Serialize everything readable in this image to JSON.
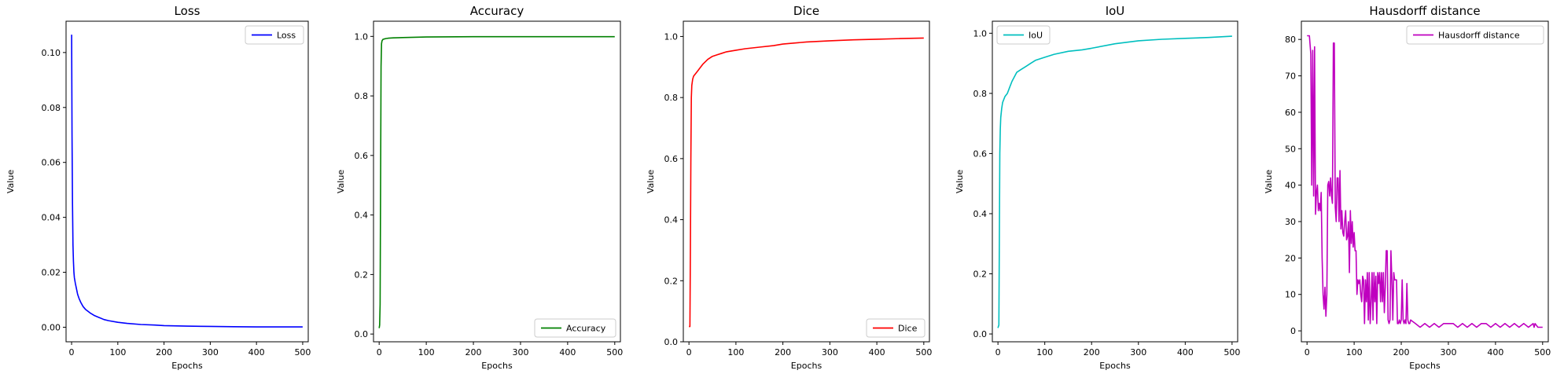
{
  "chart_data": [
    {
      "type": "line",
      "title": "Loss",
      "xlabel": "Epochs",
      "ylabel": "Value",
      "xlim": [
        -12,
        512
      ],
      "ylim": [
        -0.0053,
        0.1114
      ],
      "xticks": [
        0,
        100,
        200,
        300,
        400,
        500
      ],
      "xtick_labels": [
        "0",
        "100",
        "200",
        "300",
        "400",
        "500"
      ],
      "yticks": [
        0.0,
        0.02,
        0.04,
        0.06,
        0.08,
        0.1
      ],
      "ytick_labels": [
        "0.00",
        "0.02",
        "0.04",
        "0.06",
        "0.08",
        "0.10"
      ],
      "grid": false,
      "legend": "upper right",
      "series": [
        {
          "name": "Loss",
          "color": "#0000ff",
          "x": [
            0,
            1,
            2,
            3,
            4,
            5,
            6,
            8,
            10,
            13,
            16,
            20,
            25,
            30,
            40,
            50,
            60,
            70,
            80,
            100,
            120,
            150,
            180,
            200,
            250,
            300,
            350,
            400,
            450,
            500
          ],
          "y": [
            0.1065,
            0.07,
            0.045,
            0.03,
            0.024,
            0.02,
            0.018,
            0.016,
            0.0145,
            0.012,
            0.0105,
            0.009,
            0.0075,
            0.0065,
            0.0052,
            0.0042,
            0.0035,
            0.0028,
            0.0024,
            0.0018,
            0.0014,
            0.001,
            0.0008,
            0.0006,
            0.0004,
            0.0003,
            0.0002,
            0.0001,
            0.0001,
            0.0001
          ]
        }
      ]
    },
    {
      "type": "line",
      "title": "Accuracy",
      "xlabel": "Epochs",
      "ylabel": "Value",
      "xlim": [
        -12,
        512
      ],
      "ylim": [
        -0.026,
        1.051
      ],
      "xticks": [
        0,
        100,
        200,
        300,
        400,
        500
      ],
      "xtick_labels": [
        "0",
        "100",
        "200",
        "300",
        "400",
        "500"
      ],
      "yticks": [
        0.0,
        0.2,
        0.4,
        0.6,
        0.8,
        1.0
      ],
      "ytick_labels": [
        "0.0",
        "0.2",
        "0.4",
        "0.6",
        "0.8",
        "1.0"
      ],
      "grid": false,
      "legend": "lower right",
      "series": [
        {
          "name": "Accuracy",
          "color": "#008000",
          "x": [
            0,
            1,
            2,
            3,
            4,
            5,
            6,
            8,
            10,
            15,
            20,
            30,
            50,
            100,
            200,
            300,
            400,
            500
          ],
          "y": [
            0.02,
            0.03,
            0.1,
            0.5,
            0.9,
            0.975,
            0.985,
            0.99,
            0.991,
            0.993,
            0.994,
            0.995,
            0.996,
            0.998,
            0.999,
            0.999,
            0.999,
            0.999
          ]
        }
      ]
    },
    {
      "type": "line",
      "title": "Dice",
      "xlabel": "Epochs",
      "ylabel": "Value",
      "xlim": [
        -12,
        512
      ],
      "ylim": [
        0.0,
        1.05
      ],
      "xticks": [
        0,
        100,
        200,
        300,
        400,
        500
      ],
      "xtick_labels": [
        "0",
        "100",
        "200",
        "300",
        "400",
        "500"
      ],
      "yticks": [
        0.0,
        0.2,
        0.4,
        0.6,
        0.8,
        1.0
      ],
      "ytick_labels": [
        "0.0",
        "0.2",
        "0.4",
        "0.6",
        "0.8",
        "1.0"
      ],
      "grid": false,
      "legend": "lower right",
      "series": [
        {
          "name": "Dice",
          "color": "#ff0000",
          "x": [
            0,
            2,
            3,
            4,
            5,
            6,
            8,
            10,
            15,
            20,
            25,
            30,
            40,
            50,
            60,
            70,
            80,
            100,
            120,
            150,
            180,
            200,
            250,
            300,
            350,
            400,
            450,
            500
          ],
          "y": [
            0.05,
            0.05,
            0.3,
            0.6,
            0.8,
            0.84,
            0.86,
            0.87,
            0.88,
            0.89,
            0.9,
            0.91,
            0.925,
            0.935,
            0.94,
            0.945,
            0.95,
            0.955,
            0.96,
            0.965,
            0.97,
            0.975,
            0.982,
            0.986,
            0.989,
            0.991,
            0.993,
            0.995
          ]
        }
      ]
    },
    {
      "type": "line",
      "title": "IoU",
      "xlabel": "Epochs",
      "ylabel": "Value",
      "xlim": [
        -12,
        512
      ],
      "ylim": [
        -0.026,
        1.04
      ],
      "xticks": [
        0,
        100,
        200,
        300,
        400,
        500
      ],
      "xtick_labels": [
        "0",
        "100",
        "200",
        "300",
        "400",
        "500"
      ],
      "yticks": [
        0.0,
        0.2,
        0.4,
        0.6,
        0.8,
        1.0
      ],
      "ytick_labels": [
        "0.0",
        "0.2",
        "0.4",
        "0.6",
        "0.8",
        "1.0"
      ],
      "grid": false,
      "legend": "upper left",
      "series": [
        {
          "name": "IoU",
          "color": "#00bfbf",
          "x": [
            0,
            2,
            3,
            4,
            5,
            6,
            8,
            10,
            15,
            20,
            25,
            30,
            40,
            50,
            60,
            70,
            80,
            100,
            120,
            150,
            180,
            200,
            250,
            300,
            350,
            400,
            450,
            500
          ],
          "y": [
            0.02,
            0.03,
            0.3,
            0.6,
            0.68,
            0.72,
            0.75,
            0.77,
            0.79,
            0.8,
            0.82,
            0.84,
            0.87,
            0.88,
            0.89,
            0.9,
            0.91,
            0.92,
            0.93,
            0.94,
            0.945,
            0.95,
            0.965,
            0.975,
            0.98,
            0.983,
            0.986,
            0.99
          ]
        }
      ]
    },
    {
      "type": "line",
      "title": "Hausdorff distance",
      "xlabel": "Epochs",
      "ylabel": "Value",
      "xlim": [
        -12,
        512
      ],
      "ylim": [
        -3,
        85
      ],
      "xticks": [
        0,
        100,
        200,
        300,
        400,
        500
      ],
      "xtick_labels": [
        "0",
        "100",
        "200",
        "300",
        "400",
        "500"
      ],
      "yticks": [
        0,
        10,
        20,
        30,
        40,
        50,
        60,
        70,
        80
      ],
      "ytick_labels": [
        "0",
        "10",
        "20",
        "30",
        "40",
        "50",
        "60",
        "70",
        "80"
      ],
      "grid": false,
      "legend": "upper right",
      "series": [
        {
          "name": "Hausdorff distance",
          "color": "#bf00bf",
          "x": [
            0,
            5,
            8,
            10,
            12,
            14,
            16,
            18,
            20,
            22,
            24,
            26,
            28,
            30,
            32,
            34,
            36,
            38,
            40,
            42,
            44,
            46,
            48,
            50,
            52,
            54,
            56,
            58,
            60,
            62,
            64,
            66,
            68,
            70,
            72,
            74,
            76,
            78,
            80,
            82,
            84,
            86,
            88,
            90,
            92,
            94,
            96,
            98,
            100,
            102,
            104,
            106,
            108,
            110,
            112,
            114,
            116,
            118,
            120,
            122,
            124,
            126,
            128,
            130,
            132,
            134,
            136,
            138,
            140,
            142,
            144,
            146,
            148,
            150,
            152,
            154,
            156,
            158,
            160,
            162,
            164,
            166,
            168,
            170,
            172,
            174,
            176,
            178,
            180,
            182,
            184,
            186,
            188,
            190,
            192,
            194,
            196,
            198,
            200,
            202,
            204,
            206,
            208,
            210,
            212,
            214,
            216,
            218,
            220,
            230,
            240,
            250,
            260,
            270,
            280,
            290,
            300,
            310,
            320,
            330,
            340,
            350,
            360,
            370,
            380,
            390,
            400,
            410,
            420,
            430,
            440,
            450,
            460,
            470,
            480,
            482,
            484,
            490,
            500
          ],
          "y": [
            81,
            81,
            76,
            40,
            77,
            37,
            78,
            32,
            38,
            40,
            33,
            35,
            33,
            38,
            20,
            10,
            6,
            12,
            4,
            10,
            40,
            41,
            37,
            42,
            37,
            35,
            79,
            79,
            34,
            30,
            42,
            42,
            30,
            44,
            28,
            33,
            27,
            26,
            30,
            33,
            25,
            26,
            30,
            16,
            33,
            24,
            30,
            23,
            27,
            22,
            22,
            10,
            14,
            13,
            14,
            10,
            8,
            15,
            14,
            2,
            14,
            8,
            16,
            3,
            16,
            2,
            8,
            16,
            3,
            16,
            8,
            15,
            2,
            16,
            13,
            16,
            8,
            16,
            8,
            16,
            5,
            12,
            22,
            22,
            3,
            2,
            3,
            22,
            14,
            3,
            16,
            14,
            14,
            14,
            2,
            2,
            3,
            2,
            3,
            14,
            3,
            2,
            3,
            2,
            13,
            3,
            2,
            2,
            3,
            2,
            1,
            2,
            1,
            2,
            1,
            2,
            2,
            2,
            1,
            2,
            1,
            2,
            1,
            2,
            2,
            1,
            2,
            1,
            2,
            1,
            2,
            1,
            2,
            1,
            2,
            1,
            2,
            1,
            1
          ]
        }
      ]
    }
  ]
}
